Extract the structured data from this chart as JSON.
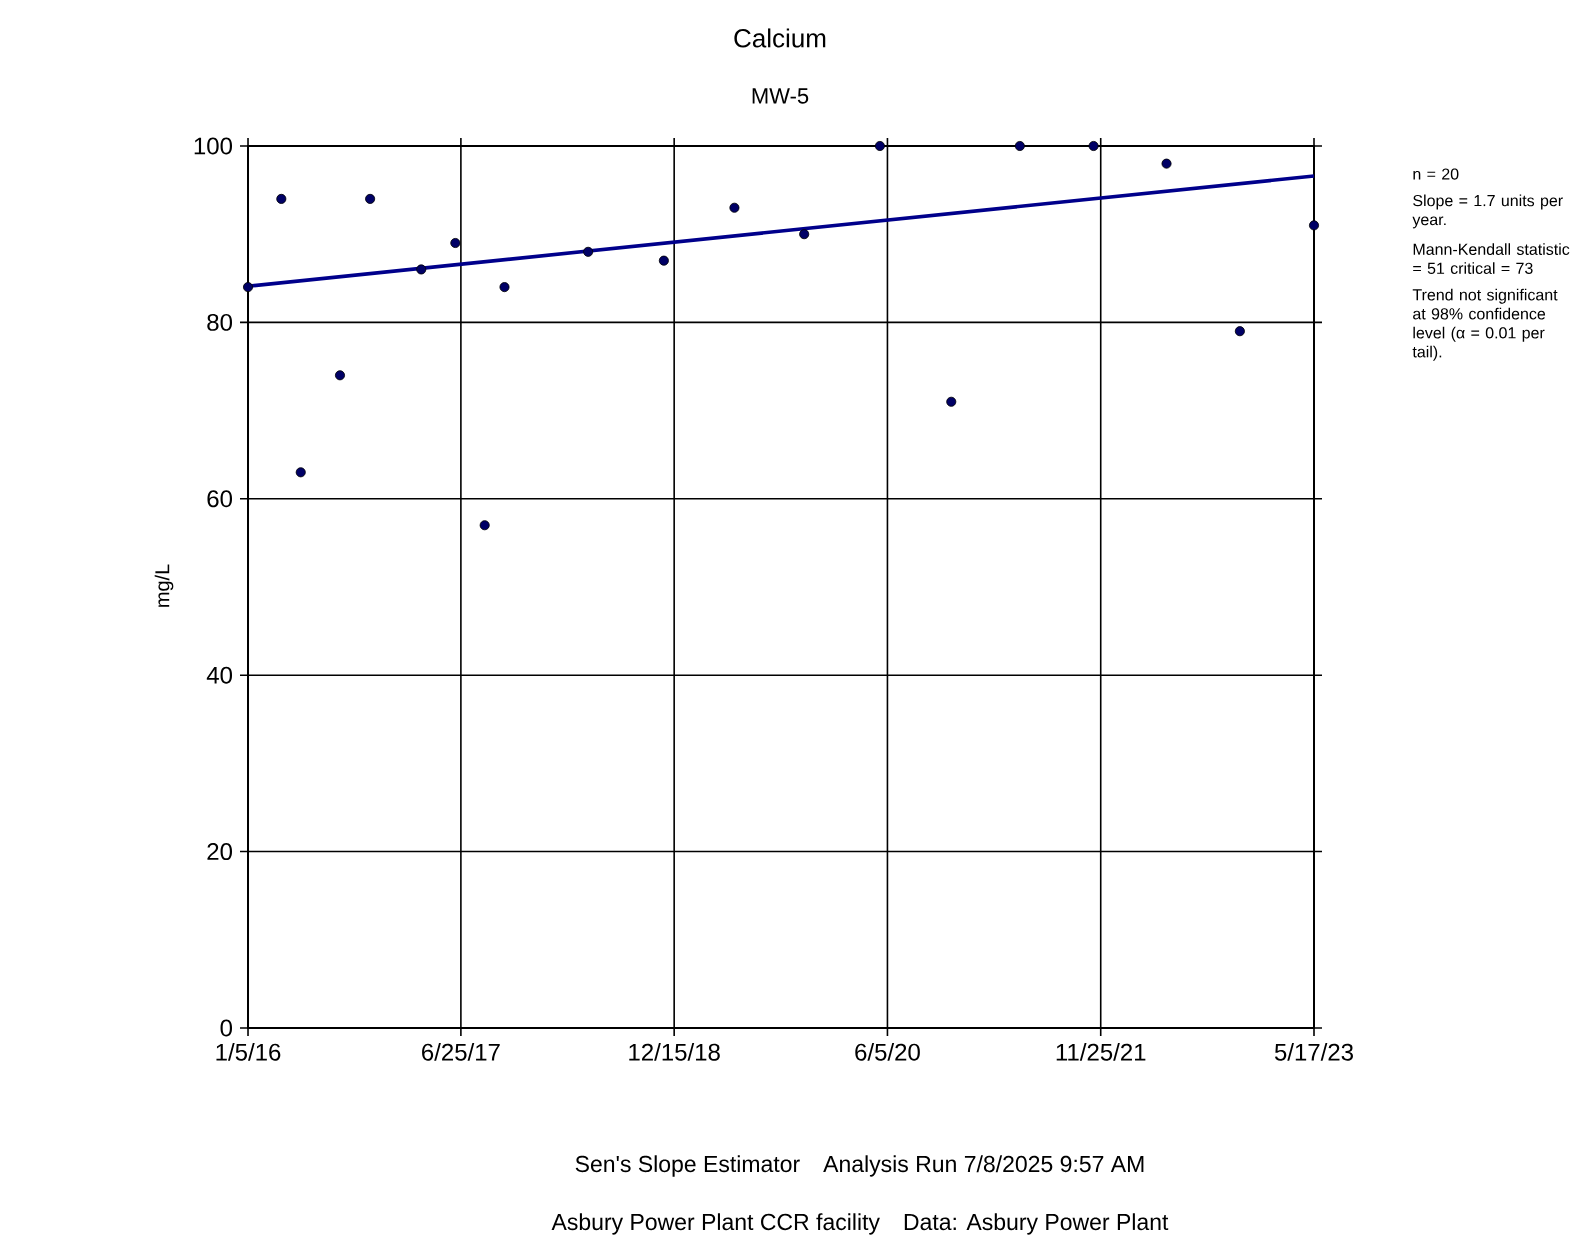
{
  "chart_data": {
    "type": "scatter",
    "title": "Calcium",
    "subtitle": "MW-5",
    "ylabel": "mg/L",
    "xlim": [
      "2016-01-05",
      "2023-05-17"
    ],
    "ylim": [
      0,
      100
    ],
    "xticks": [
      {
        "value": "2016-01-05",
        "label": "1/5/16"
      },
      {
        "value": "2017-06-25",
        "label": "6/25/17"
      },
      {
        "value": "2018-12-15",
        "label": "12/15/18"
      },
      {
        "value": "2020-06-05",
        "label": "6/5/20"
      },
      {
        "value": "2021-11-25",
        "label": "11/25/21"
      },
      {
        "value": "2023-05-17",
        "label": "5/17/23"
      }
    ],
    "yticks": [
      0,
      20,
      40,
      60,
      80,
      100
    ],
    "grid": true,
    "series": [
      {
        "marker": "circle",
        "color": "#000066",
        "x": [
          "2016-01-05",
          "2016-03-29",
          "2016-05-17",
          "2016-08-24",
          "2016-11-08",
          "2017-03-17",
          "2017-06-11",
          "2017-08-24",
          "2017-10-13",
          "2018-05-12",
          "2018-11-19",
          "2019-05-16",
          "2019-11-08",
          "2020-05-17",
          "2020-11-13",
          "2021-05-05",
          "2021-11-07",
          "2022-05-10",
          "2022-11-11",
          "2023-05-17"
        ],
        "values": [
          84,
          94,
          63,
          74,
          94,
          86,
          89,
          57,
          84,
          88,
          87,
          93,
          90,
          100,
          71,
          100,
          100,
          98,
          79,
          91
        ]
      },
      {
        "type": "line",
        "marker": "none",
        "color": "#00008b",
        "x": [
          "2016-01-05",
          "2023-05-17"
        ],
        "values": [
          84.1,
          96.6
        ]
      }
    ],
    "annotations": [
      "n = 20",
      "Slope = 1.7 units per year.",
      "Mann-Kendall statistic = 51 critical = 73",
      "Trend not significant at 98% confidence level (α = 0.01 per tail).",
      "Sen's Slope Estimator    Analysis Run 7/8/2025 9:57 AM",
      "Asbury Power Plant CCR facility    Data: Asbury Power Plant"
    ]
  }
}
